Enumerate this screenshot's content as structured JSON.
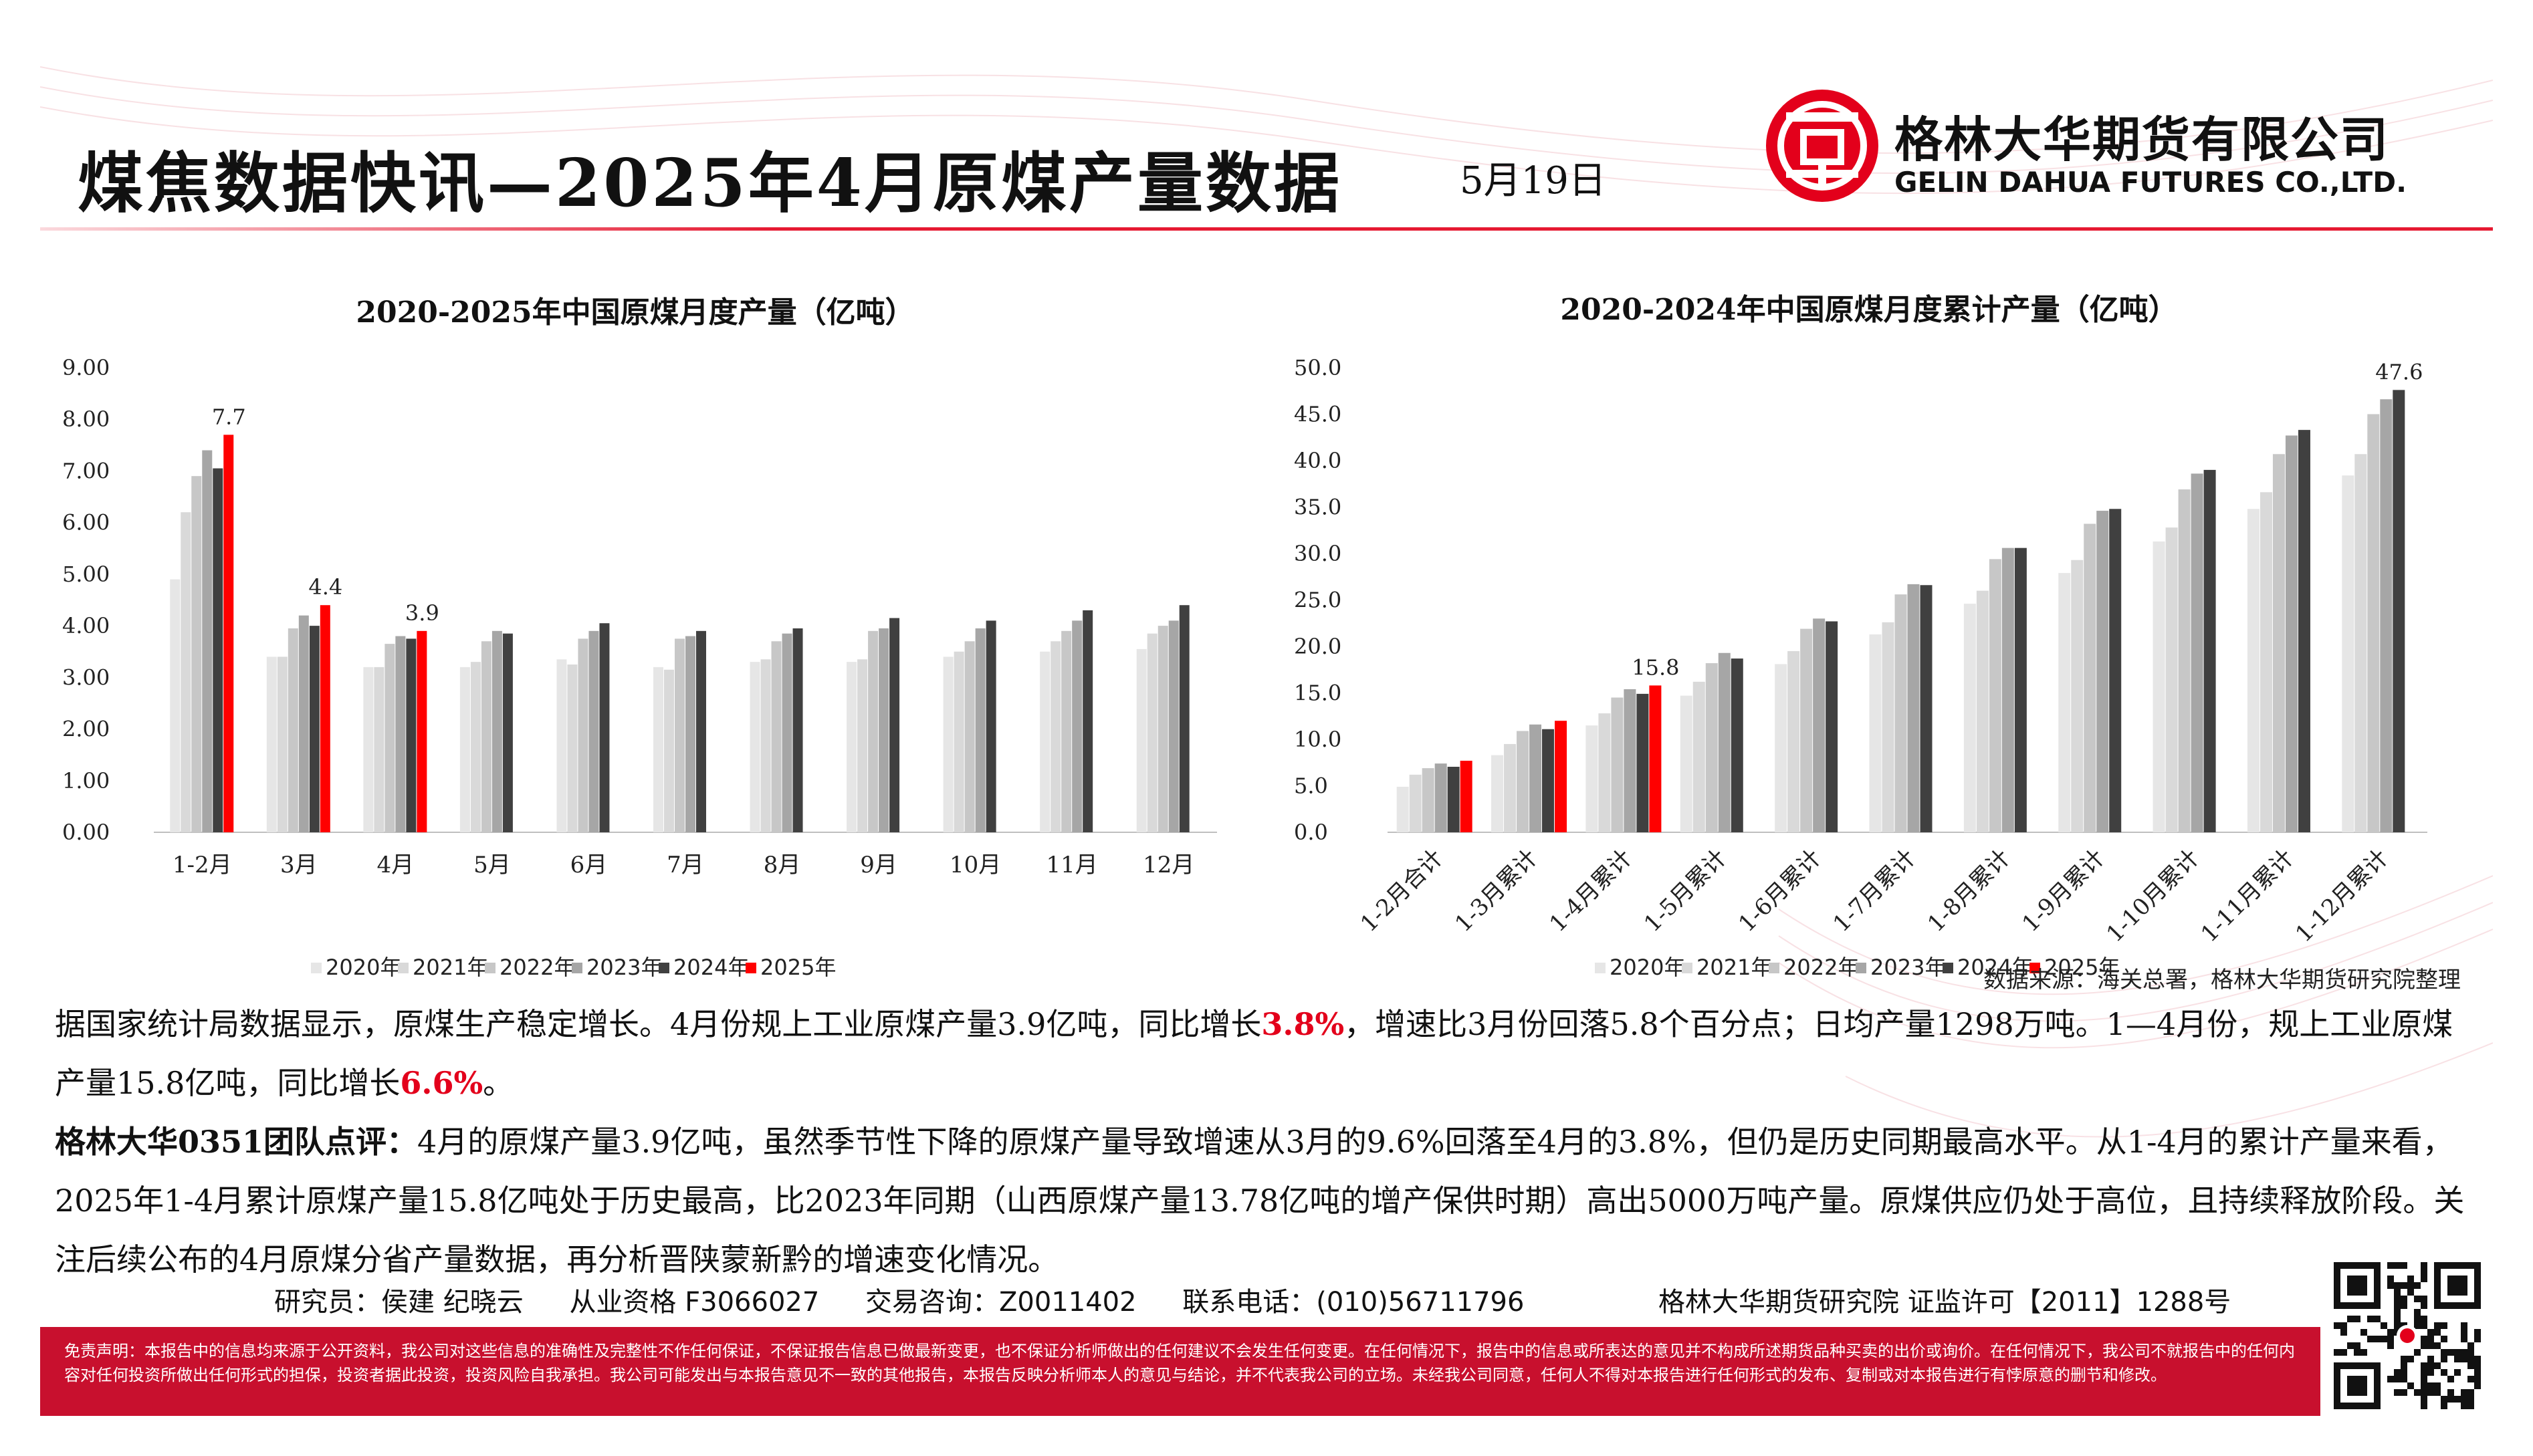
{
  "header": {
    "title": "煤焦数据快讯—2025年4月原煤产量数据",
    "date": "5月19日",
    "company_cn": "格林大华期货有限公司",
    "company_en": "GELIN DAHUA FUTURES CO.,LTD."
  },
  "colors": {
    "accent_red": "#e3001b",
    "disclaimer_red": "#c8102e",
    "series": [
      "#e6e6e6",
      "#d9d9d9",
      "#c7c7c7",
      "#a6a6a6",
      "#404040",
      "#ff0000"
    ]
  },
  "chart_data": [
    {
      "type": "bar",
      "title": "2020-2025年中国原煤月度产量（亿吨）",
      "xlabel": "",
      "ylabel": "",
      "ylim": [
        0,
        9
      ],
      "yticks": [
        "9.00",
        "8.00",
        "7.00",
        "6.00",
        "5.00",
        "4.00",
        "3.00",
        "2.00",
        "1.00",
        "0.00"
      ],
      "categories": [
        "1-2月",
        "3月",
        "4月",
        "5月",
        "6月",
        "7月",
        "8月",
        "9月",
        "10月",
        "11月",
        "12月"
      ],
      "series": [
        {
          "name": "2020年",
          "values": [
            4.9,
            3.4,
            3.2,
            3.2,
            3.35,
            3.2,
            3.3,
            3.3,
            3.4,
            3.5,
            3.55
          ]
        },
        {
          "name": "2021年",
          "values": [
            6.2,
            3.4,
            3.2,
            3.3,
            3.25,
            3.15,
            3.35,
            3.35,
            3.5,
            3.7,
            3.85
          ]
        },
        {
          "name": "2022年",
          "values": [
            6.9,
            3.95,
            3.65,
            3.7,
            3.75,
            3.75,
            3.7,
            3.9,
            3.7,
            3.9,
            4.0
          ]
        },
        {
          "name": "2023年",
          "values": [
            7.4,
            4.2,
            3.8,
            3.9,
            3.9,
            3.8,
            3.85,
            3.95,
            3.95,
            4.1,
            4.1
          ]
        },
        {
          "name": "2024年",
          "values": [
            7.05,
            4.0,
            3.75,
            3.85,
            4.05,
            3.9,
            3.95,
            4.15,
            4.1,
            4.3,
            4.4
          ]
        },
        {
          "name": "2025年",
          "values": [
            7.7,
            4.4,
            3.9,
            null,
            null,
            null,
            null,
            null,
            null,
            null,
            null
          ]
        }
      ],
      "data_labels": [
        {
          "series": "2025年",
          "category": "1-2月",
          "text": "7.7"
        },
        {
          "series": "2025年",
          "category": "3月",
          "text": "4.4"
        },
        {
          "series": "2025年",
          "category": "4月",
          "text": "3.9"
        }
      ],
      "legend": "bottom",
      "grid": false
    },
    {
      "type": "bar",
      "title": "2020-2024年中国原煤月度累计产量（亿吨）",
      "xlabel": "",
      "ylabel": "",
      "ylim": [
        0,
        50
      ],
      "yticks": [
        "50.0",
        "45.0",
        "40.0",
        "35.0",
        "30.0",
        "25.0",
        "20.0",
        "15.0",
        "10.0",
        "5.0",
        "0.0"
      ],
      "categories": [
        "1-2月合计",
        "1-3月累计",
        "1-4月累计",
        "1-5月累计",
        "1-6月累计",
        "1-7月累计",
        "1-8月累计",
        "1-9月累计",
        "1-10月累计",
        "1-11月累计",
        "1-12月累计"
      ],
      "series": [
        {
          "name": "2020年",
          "values": [
            4.9,
            8.3,
            11.5,
            14.7,
            18.1,
            21.3,
            24.6,
            27.9,
            31.3,
            34.8,
            38.4
          ]
        },
        {
          "name": "2021年",
          "values": [
            6.2,
            9.5,
            12.8,
            16.2,
            19.5,
            22.6,
            26.0,
            29.3,
            32.8,
            36.6,
            40.7
          ]
        },
        {
          "name": "2022年",
          "values": [
            6.9,
            10.9,
            14.5,
            18.2,
            21.9,
            25.6,
            29.4,
            33.2,
            36.9,
            40.7,
            45.0
          ]
        },
        {
          "name": "2023年",
          "values": [
            7.4,
            11.6,
            15.4,
            19.3,
            23.0,
            26.7,
            30.6,
            34.6,
            38.6,
            42.7,
            46.6
          ]
        },
        {
          "name": "2024年",
          "values": [
            7.05,
            11.1,
            14.9,
            18.7,
            22.7,
            26.6,
            30.6,
            34.8,
            39.0,
            43.3,
            47.6
          ]
        },
        {
          "name": "2025年",
          "values": [
            7.7,
            12.0,
            15.8,
            null,
            null,
            null,
            null,
            null,
            null,
            null,
            null
          ]
        }
      ],
      "data_labels": [
        {
          "series": "2025年",
          "category": "1-4月累计",
          "text": "15.8"
        },
        {
          "series": "2024年",
          "category": "1-12月累计",
          "text": "47.6"
        }
      ],
      "legend": "bottom",
      "grid": false
    }
  ],
  "source": "数据来源：海关总署，格林大华期货研究院整理",
  "paragraph1": {
    "part1": "据国家统计局数据显示，原煤生产稳定增长。4月份规上工业原煤产量3.9亿吨，同比增长",
    "hl1": "3.8%",
    "part2": "，增速比3月份回落5.8个百分点；日均产量1298万吨。1—4月份，规上工业原煤产量15.8亿吨，同比增长",
    "hl2": "6.6%",
    "part3": "。"
  },
  "paragraph2": {
    "lead": "格林大华0351团队点评：",
    "body": "4月的原煤产量3.9亿吨，虽然季节性下降的原煤产量导致增速从3月的9.6%回落至4月的3.8%，但仍是历史同期最高水平。从1-4月的累计产量来看，2025年1-4月累计原煤产量15.8亿吨处于历史最高，比2023年同期（山西原煤产量13.78亿吨的增产保供时期）高出5000万吨产量。原煤供应仍处于高位，且持续释放阶段。关注后续公布的4月原煤分省产量数据，再分析晋陕蒙新黔的增速变化情况。"
  },
  "footer": {
    "researchers": "研究员：侯建 纪晓云",
    "license": "从业资格 F3066027",
    "consult": "交易咨询：Z0011402",
    "phone": "联系电话：(010)56711796",
    "org": "格林大华期货研究院  证监许可【2011】1288号"
  },
  "disclaimer": "免责声明：本报告中的信息均来源于公开资料，我公司对这些信息的准确性及完整性不作任何保证，不保证报告信息已做最新变更，也不保证分析师做出的任何建议不会发生任何变更。在任何情况下，报告中的信息或所表达的意见并不构成所述期货品种买卖的出价或询价。在任何情况下，我公司不就报告中的任何内容对任何投资所做出任何形式的担保，投资者据此投资，投资风险自我承担。我公司可能发出与本报告意见不一致的其他报告，本报告反映分析师本人的意见与结论，并不代表我公司的立场。未经我公司同意，任何人不得对本报告进行任何形式的发布、复制或对本报告进行有悖原意的删节和修改。"
}
